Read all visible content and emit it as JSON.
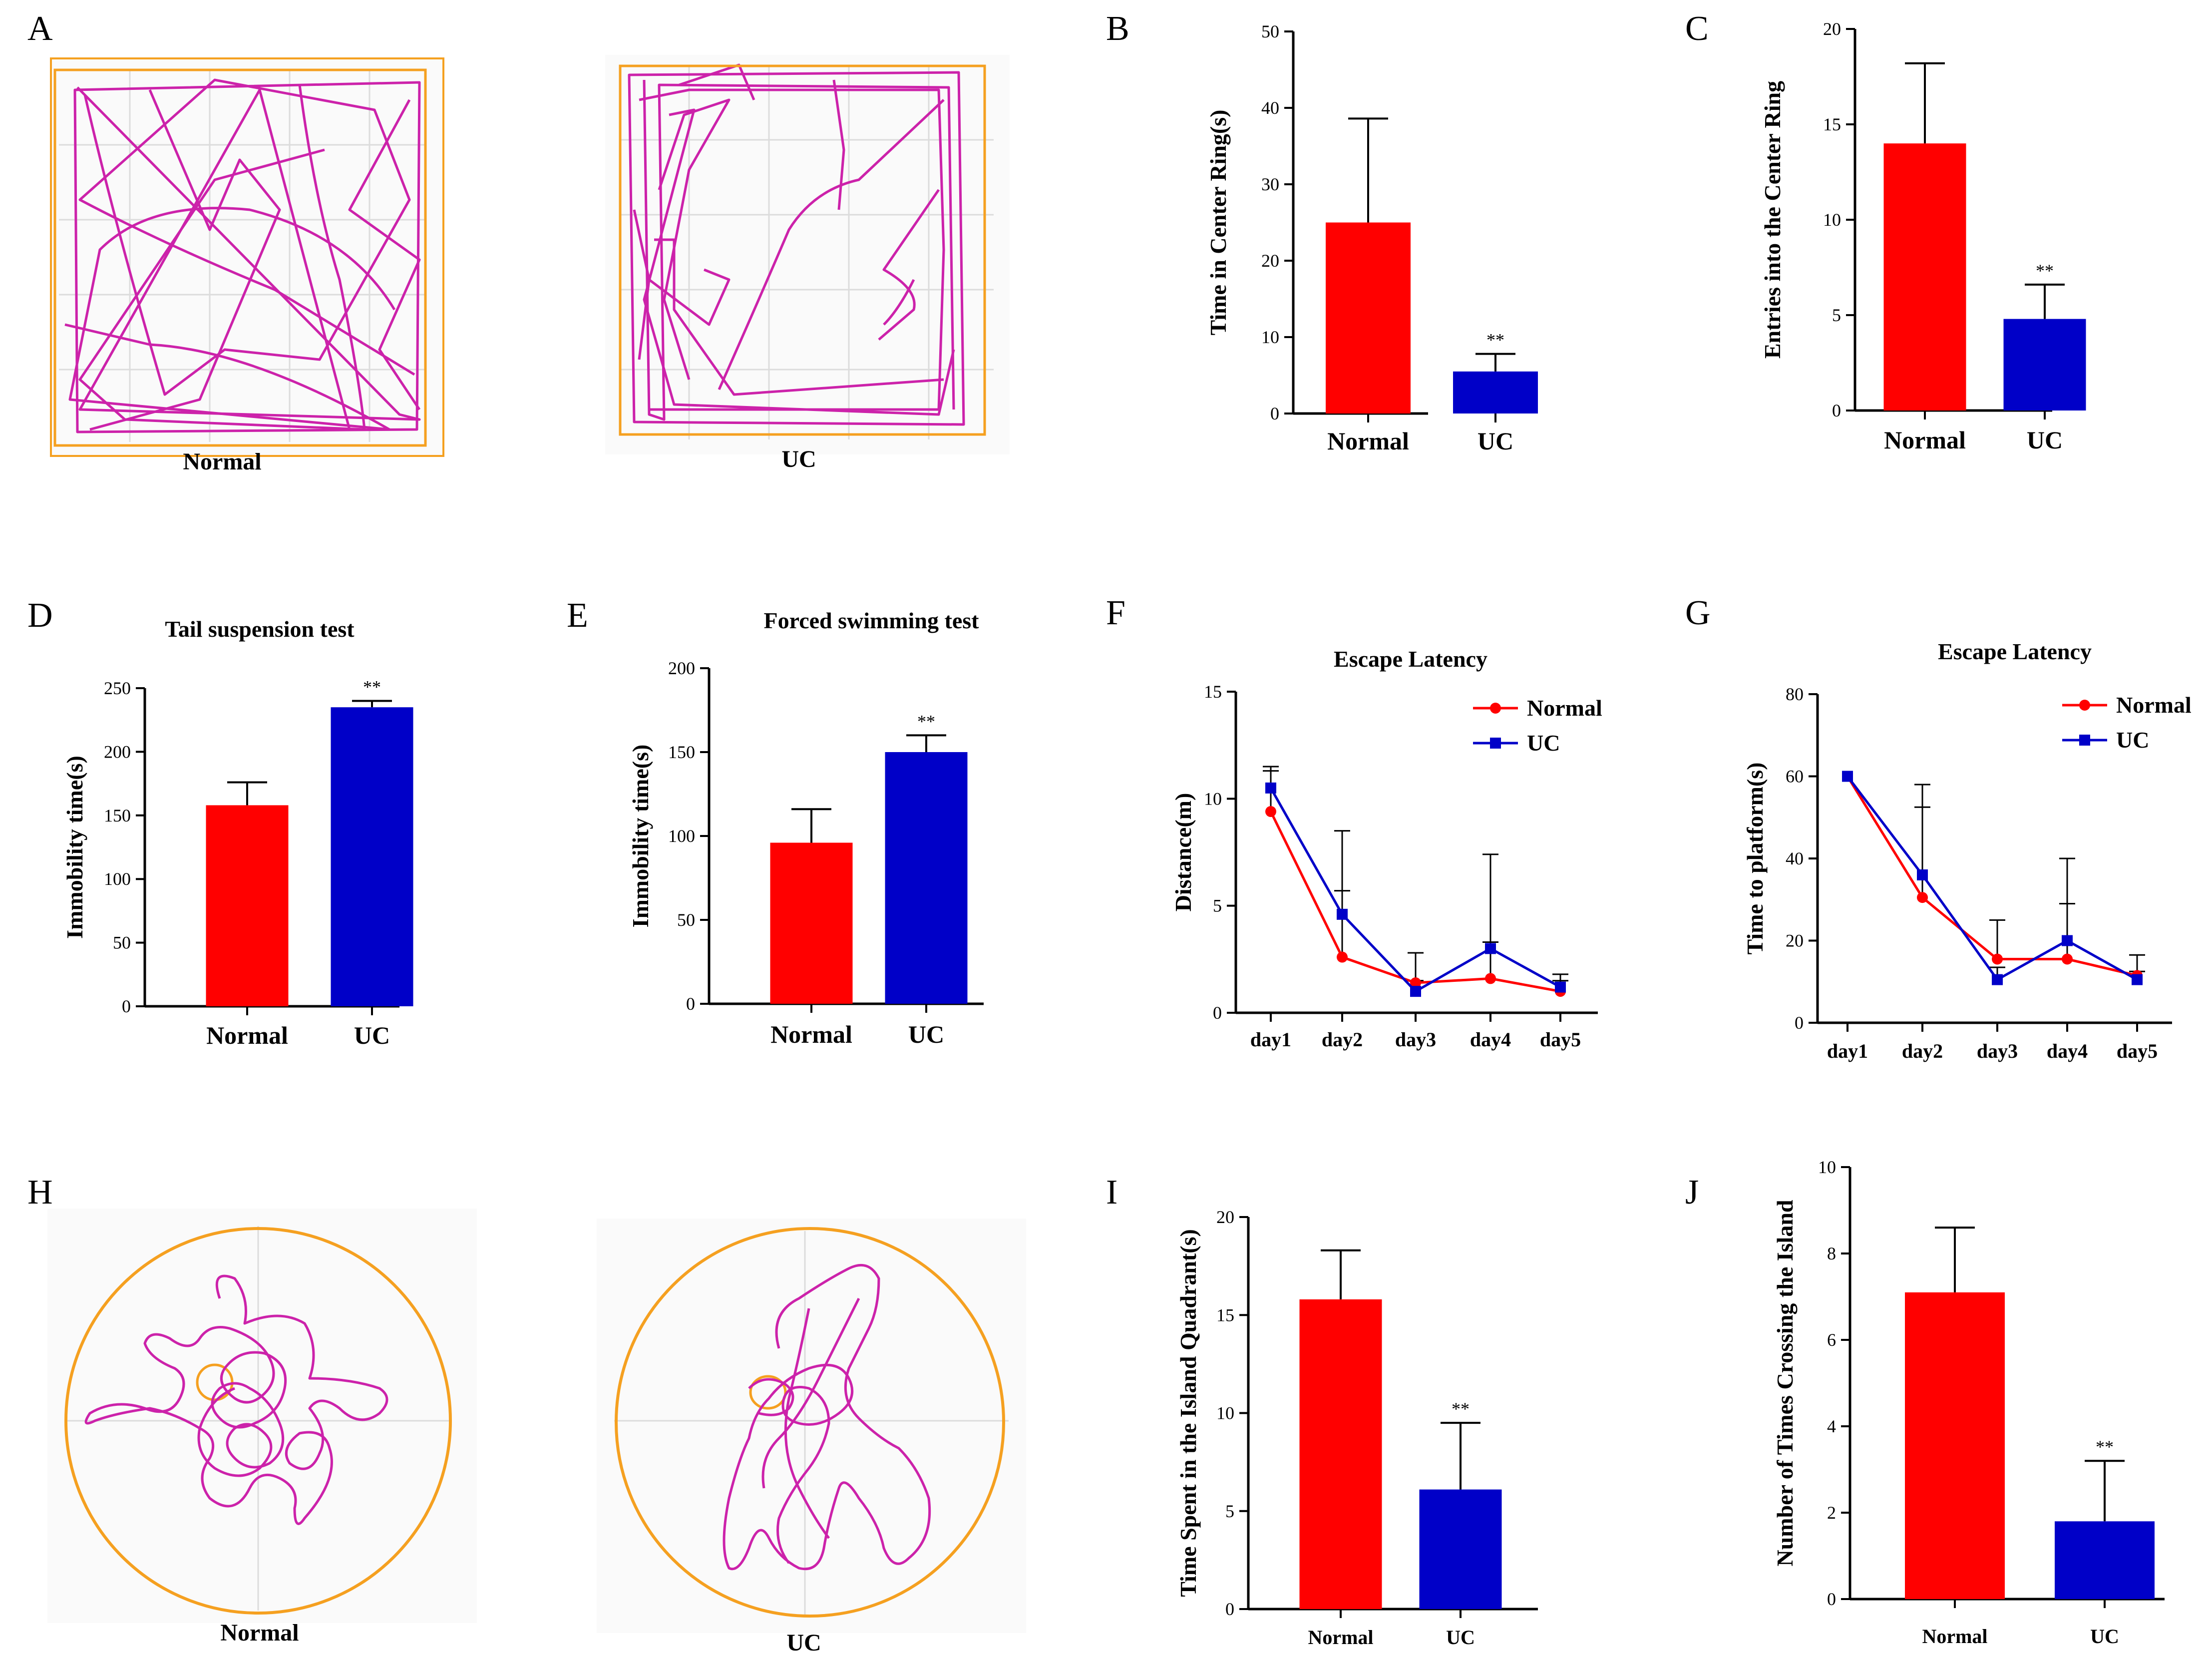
{
  "colors": {
    "normal": "#ff0000",
    "uc": "#0000c8",
    "path": "#cc22aa",
    "arena": "#f5a020",
    "grid": "#dcdcdc"
  },
  "panels": {
    "A": {
      "letter": "A",
      "normal_label": "Normal",
      "uc_label": "UC"
    },
    "H": {
      "letter": "H",
      "normal_label": "Normal",
      "uc_label": "UC"
    }
  },
  "chart_data": [
    {
      "id": "B",
      "letter": "B",
      "type": "bar",
      "title": "",
      "ylabel": "Time in Center Ring(s)",
      "xlabel": "",
      "categories": [
        "Normal",
        "UC"
      ],
      "values": [
        25,
        5.5
      ],
      "errors": [
        13.6,
        2.3
      ],
      "significance": [
        "",
        "**"
      ],
      "ylim": [
        0,
        50
      ],
      "yticks": [
        0,
        10,
        20,
        30,
        40,
        50
      ],
      "ytick_labels": [
        "0",
        "10",
        "20",
        "30",
        "40",
        "50"
      ]
    },
    {
      "id": "C",
      "letter": "C",
      "type": "bar",
      "title": "",
      "ylabel": "Entries into the Center Ring",
      "xlabel": "",
      "categories": [
        "Normal",
        "UC"
      ],
      "values": [
        14,
        4.8
      ],
      "errors": [
        4.2,
        1.8
      ],
      "significance": [
        "",
        "**"
      ],
      "ylim": [
        0,
        20
      ],
      "yticks": [
        0,
        5,
        10,
        15,
        20
      ],
      "ytick_labels": [
        "0",
        "5",
        "10",
        "15",
        "20"
      ]
    },
    {
      "id": "D",
      "letter": "D",
      "type": "bar",
      "title": "Tail suspension test",
      "ylabel": "Immobility time(s)",
      "xlabel": "",
      "categories": [
        "Normal",
        "UC"
      ],
      "values": [
        158,
        235
      ],
      "errors": [
        18,
        5
      ],
      "significance": [
        "",
        "**"
      ],
      "ylim": [
        0,
        250
      ],
      "yticks": [
        0,
        50,
        100,
        150,
        200,
        250
      ],
      "ytick_labels": [
        "0",
        "50",
        "100",
        "150",
        "200",
        "250"
      ]
    },
    {
      "id": "E",
      "letter": "E",
      "type": "bar",
      "title": "Forced swimming test",
      "ylabel": "Immobility time(s)",
      "xlabel": "",
      "categories": [
        "Normal",
        "UC"
      ],
      "values": [
        96,
        150
      ],
      "errors": [
        20,
        10
      ],
      "significance": [
        "",
        "**"
      ],
      "ylim": [
        0,
        200
      ],
      "yticks": [
        0,
        50,
        100,
        150,
        200
      ],
      "ytick_labels": [
        "0",
        "50",
        "100",
        "150",
        "200"
      ]
    },
    {
      "id": "F",
      "letter": "F",
      "type": "line",
      "title": "Escape Latency",
      "ylabel": "Distance(m)",
      "xlabel": "",
      "categories": [
        "day1",
        "day2",
        "day3",
        "day4",
        "day5"
      ],
      "series": [
        {
          "name": "Normal",
          "values": [
            9.4,
            2.6,
            1.4,
            1.6,
            1.0
          ],
          "errors": [
            1.9,
            3.1,
            1.4,
            1.7,
            0.8
          ]
        },
        {
          "name": "UC",
          "values": [
            10.5,
            4.6,
            1.0,
            3.0,
            1.2
          ],
          "errors": [
            1.0,
            3.9,
            0.5,
            4.4,
            0.3
          ]
        }
      ],
      "ylim": [
        0,
        15
      ],
      "yticks": [
        0,
        5,
        10,
        15
      ],
      "ytick_labels": [
        "0",
        "5",
        "10",
        "15"
      ]
    },
    {
      "id": "G",
      "letter": "G",
      "type": "line",
      "title": "Escape Latency",
      "ylabel": "Time to platform(s)",
      "xlabel": "",
      "categories": [
        "day1",
        "day2",
        "day3",
        "day4",
        "day5"
      ],
      "series": [
        {
          "name": "Normal",
          "values": [
            60,
            30.5,
            15.5,
            15.5,
            11.5
          ],
          "errors": [
            0,
            22,
            9.5,
            13.5,
            5
          ]
        },
        {
          "name": "UC",
          "values": [
            60,
            36,
            10.5,
            20,
            10.5
          ],
          "errors": [
            0,
            22,
            3,
            20,
            2
          ]
        }
      ],
      "ylim": [
        0,
        80
      ],
      "yticks": [
        0,
        20,
        40,
        60,
        80
      ],
      "ytick_labels": [
        "0",
        "20",
        "40",
        "60",
        "80"
      ]
    },
    {
      "id": "I",
      "letter": "I",
      "type": "bar",
      "title": "",
      "ylabel": "Time Spent in the Island Quadrant(s)",
      "xlabel": "",
      "categories": [
        "Normal",
        "UC"
      ],
      "values": [
        15.8,
        6.1
      ],
      "errors": [
        2.5,
        3.4
      ],
      "significance": [
        "",
        "**"
      ],
      "ylim": [
        0,
        20
      ],
      "yticks": [
        0,
        5,
        10,
        15,
        20
      ],
      "ytick_labels": [
        "0",
        "5",
        "10",
        "15",
        "20"
      ]
    },
    {
      "id": "J",
      "letter": "J",
      "type": "bar",
      "title": "",
      "ylabel": "Number of Times Crossing the Island",
      "xlabel": "",
      "categories": [
        "Normal",
        "UC"
      ],
      "values": [
        7.1,
        1.8
      ],
      "errors": [
        1.5,
        1.4
      ],
      "significance": [
        "",
        "**"
      ],
      "ylim": [
        0,
        10
      ],
      "yticks": [
        0,
        2,
        4,
        6,
        8,
        10
      ],
      "ytick_labels": [
        "0",
        "2",
        "4",
        "6",
        "8",
        "10"
      ]
    }
  ]
}
